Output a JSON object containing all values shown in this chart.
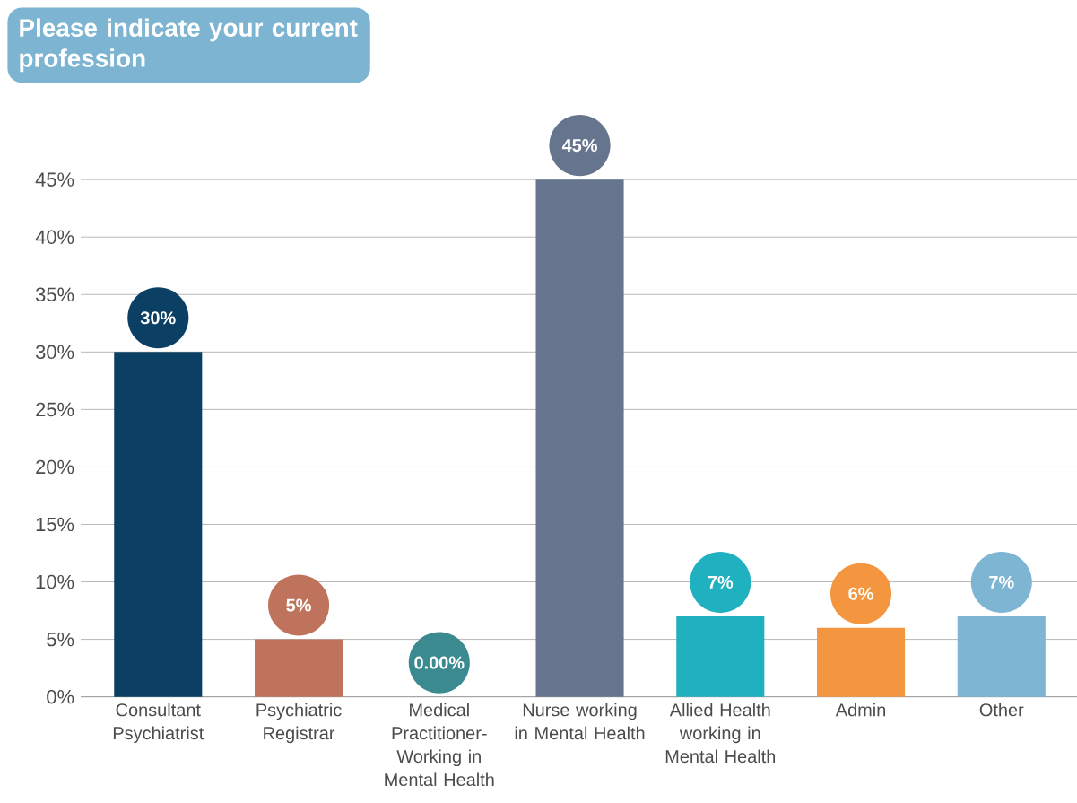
{
  "chart_data": {
    "type": "bar",
    "title": "Please indicate your current profession",
    "categories": [
      "Consultant Psychiatrist",
      "Psychiatric Registrar",
      "Medical Practitioner-Working in Mental Health",
      "Nurse working in Mental Health",
      "Allied Health working in Mental Health",
      "Admin",
      "Other"
    ],
    "values": [
      30,
      5,
      0,
      45,
      7,
      6,
      7
    ],
    "colors": [
      "#0b3f63",
      "#c0735c",
      "#3a8a8f",
      "#66748e",
      "#1fb1c0",
      "#f4963f",
      "#7db5d2"
    ],
    "value_labels": [
      "30%",
      "5%",
      "0.00%",
      "45%",
      "7%",
      "6%",
      "7%"
    ],
    "ylim": [
      0,
      45
    ],
    "yticks": [
      {
        "value": 0,
        "label": "0%"
      },
      {
        "value": 5,
        "label": "5%"
      },
      {
        "value": 10,
        "label": "10%"
      },
      {
        "value": 15,
        "label": "15%"
      },
      {
        "value": 20,
        "label": "20%"
      },
      {
        "value": 25,
        "label": "25%"
      },
      {
        "value": 30,
        "label": "30%"
      },
      {
        "value": 35,
        "label": "35%"
      },
      {
        "value": 40,
        "label": "40%"
      },
      {
        "value": 45,
        "label": "45%"
      }
    ],
    "grid": "y"
  }
}
